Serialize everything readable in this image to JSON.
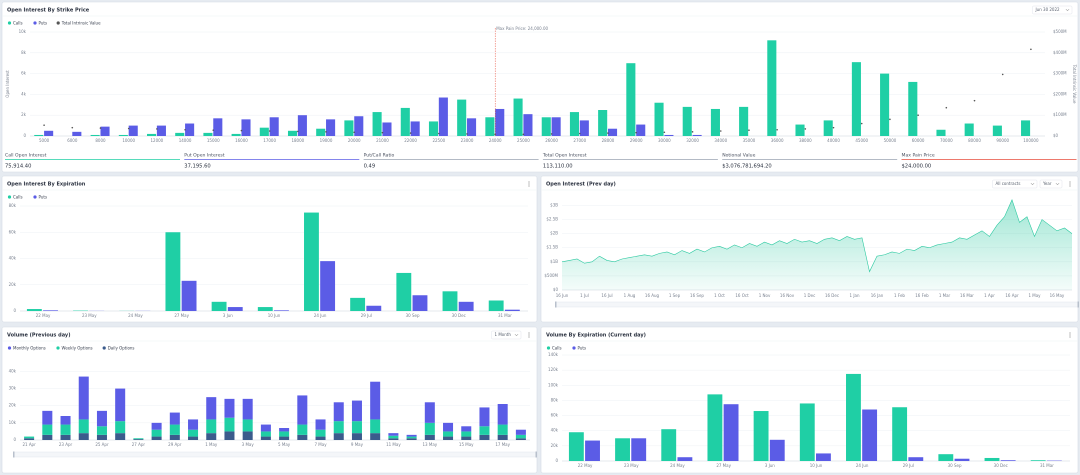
{
  "chart_data": [
    {
      "type": "bar",
      "title": "Open Interest By Strike Price",
      "dropdowns": [
        "Jun 30 2022"
      ],
      "ylabel": "Open Interest",
      "y2label": "Total Intrinsic Value",
      "y2color": "#e74c3c",
      "grid": true,
      "categories": [
        "5000",
        "6000",
        "8000",
        "10000",
        "12000",
        "14000",
        "15000",
        "16000",
        "17000",
        "18000",
        "19000",
        "20000",
        "21000",
        "22000",
        "22500",
        "23000",
        "24000",
        "25000",
        "26000",
        "27000",
        "28000",
        "29000",
        "30000",
        "32000",
        "34000",
        "35000",
        "36000",
        "38000",
        "40000",
        "45000",
        "50000",
        "60000",
        "70000",
        "80000",
        "90000",
        "100000"
      ],
      "series": [
        {
          "name": "Calls",
          "color": "#1fcfa5",
          "values": [
            100,
            0,
            100,
            100,
            200,
            300,
            300,
            200,
            800,
            500,
            700,
            1500,
            2300,
            2700,
            1400,
            3500,
            1800,
            3600,
            1800,
            2300,
            2500,
            7000,
            3200,
            2800,
            2600,
            2800,
            9200,
            1100,
            1500,
            7100,
            6000,
            5200,
            600,
            1200,
            1000,
            1500
          ]
        },
        {
          "name": "Puts",
          "color": "#5b5ce6",
          "values": [
            500,
            400,
            900,
            1000,
            1000,
            1200,
            1700,
            1600,
            1800,
            2000,
            1600,
            1900,
            1300,
            1400,
            3700,
            1700,
            2600,
            2100,
            1800,
            1500,
            700,
            1100,
            100,
            100,
            0,
            0,
            0,
            0,
            0,
            0,
            0,
            0,
            0,
            0,
            0,
            0
          ]
        },
        {
          "name": "Total Intrinsic Value",
          "color": "#555555",
          "type": "scatter",
          "axis": "y2",
          "values": [
            52000000.0,
            40000000.0,
            38000000.0,
            36000000.0,
            34000000.0,
            30000000.0,
            28000000.0,
            26000000.0,
            24000000.0,
            22000000.0,
            20000000.0,
            18000000.0,
            16000000.0,
            14000000.0,
            12000000.0,
            10000000.0,
            8000000.0,
            8000000.0,
            10000000.0,
            12000000.0,
            14000000.0,
            16000000.0,
            18000000.0,
            20000000.0,
            24000000.0,
            28000000.0,
            30000000.0,
            34000000.0,
            40000000.0,
            60000000.0,
            80000000.0,
            100000000.0,
            136000000.0,
            170000000.0,
            296000000.0,
            417000000.0
          ]
        }
      ],
      "ylim": [
        0,
        10000
      ],
      "yticks": [
        0,
        {
          "value": 2000,
          "label": "2k"
        },
        {
          "value": 4000,
          "label": "4k"
        },
        {
          "value": 6000,
          "label": "6k"
        },
        {
          "value": 8000,
          "label": "8k"
        },
        {
          "value": 10000,
          "label": "10k"
        }
      ],
      "y2lim": [
        0,
        500000000.0
      ],
      "y2ticks": [
        {
          "value": 0,
          "label": "$0"
        },
        {
          "value": 100000000.0,
          "label": "$100M"
        },
        {
          "value": 200000000.0,
          "label": "$200M"
        },
        {
          "value": 300000000.0,
          "label": "$300M"
        },
        {
          "value": 400000000.0,
          "label": "$400M"
        },
        {
          "value": 500000000.0,
          "label": "$500M"
        }
      ],
      "annotations": [
        {
          "text": "Max Pain Price: 24,000.00",
          "x": "24000",
          "color": "#e74c3c"
        }
      ],
      "stats": [
        {
          "label": "Call Open Interest",
          "value": "75,914.40",
          "color": "#1fcfa5"
        },
        {
          "label": "Put Open Interest",
          "value": "37,195.60",
          "color": "#5b5ce6"
        },
        {
          "label": "Put/Call Ratio",
          "value": "0.49",
          "color": "#9aa3b2"
        },
        {
          "label": "Total Open Interest",
          "value": "113,110.00",
          "color": "#9aa3b2"
        },
        {
          "label": "Notional Value",
          "value": "$3,076,781,694.20",
          "color": "#9aa3b2"
        },
        {
          "label": "Max Pain Price",
          "value": "$24,000.00",
          "color": "#e74c3c"
        }
      ]
    },
    {
      "type": "bar",
      "title": "Open Interest By Expiration",
      "grid": true,
      "categories": [
        "22 May",
        "23 May",
        "24 May",
        "27 May",
        "3 Jun",
        "10 Jun",
        "24 Jun",
        "29 Jul",
        "30 Sep",
        "30 Dec",
        "31 Mar"
      ],
      "series": [
        {
          "name": "Calls",
          "color": "#1fcfa5",
          "values": [
            1500,
            300,
            100,
            60000,
            7000,
            3000,
            75000,
            10000,
            29000,
            15000,
            8000
          ]
        },
        {
          "name": "Puts",
          "color": "#5b5ce6",
          "values": [
            500,
            100,
            100,
            23000,
            3000,
            500,
            38000,
            4000,
            12000,
            7000,
            1000
          ]
        }
      ],
      "ylim": [
        0,
        80000
      ],
      "yticks": [
        0,
        {
          "value": 20000,
          "label": "20k"
        },
        {
          "value": 40000,
          "label": "40k"
        },
        {
          "value": 60000,
          "label": "60k"
        },
        {
          "value": 80000,
          "label": "80k"
        }
      ]
    },
    {
      "type": "area",
      "title": "Open Interest (Prev day)",
      "dropdowns": [
        "All contracts",
        "Year"
      ],
      "grid": true,
      "color": "#2bc9a0",
      "categories": [
        "16 Jun",
        null,
        null,
        "1 Jul",
        null,
        null,
        "16 Jul",
        null,
        null,
        "1 Aug",
        null,
        null,
        "16 Aug",
        null,
        null,
        "1 Sep",
        null,
        null,
        "16 Sep",
        null,
        null,
        "1 Oct",
        null,
        null,
        "16 Oct",
        null,
        null,
        "1 Nov",
        null,
        null,
        "16 Nov",
        null,
        null,
        "1 Dec",
        null,
        null,
        "16 Dec",
        null,
        null,
        "1 Jan",
        null,
        null,
        "16 Jan",
        null,
        null,
        "1 Feb",
        null,
        null,
        "16 Feb",
        null,
        null,
        "1 Mar",
        null,
        null,
        "16 Mar",
        null,
        null,
        "1 Apr",
        null,
        null,
        "16 Apr",
        null,
        null,
        "1 May",
        null,
        null,
        "16 May",
        null,
        null
      ],
      "values": [
        1000000000.0,
        1050000000.0,
        1100000000.0,
        950000000.0,
        1000000000.0,
        1200000000.0,
        1050000000.0,
        1000000000.0,
        1100000000.0,
        1150000000.0,
        1200000000.0,
        1250000000.0,
        1200000000.0,
        1300000000.0,
        1350000000.0,
        1250000000.0,
        1400000000.0,
        1300000000.0,
        1450000000.0,
        1350000000.0,
        1500000000.0,
        1550000000.0,
        1450000000.0,
        1600000000.0,
        1500000000.0,
        1650000000.0,
        1550000000.0,
        1700000000.0,
        1600000000.0,
        1750000000.0,
        1650000000.0,
        1800000000.0,
        1700000000.0,
        1750000000.0,
        1650000000.0,
        1800000000.0,
        1850000000.0,
        1750000000.0,
        1900000000.0,
        1800000000.0,
        1850000000.0,
        650000000.0,
        1200000000.0,
        1250000000.0,
        1350000000.0,
        1300000000.0,
        1450000000.0,
        1400000000.0,
        1550000000.0,
        1500000000.0,
        1600000000.0,
        1650000000.0,
        1700000000.0,
        1850000000.0,
        1800000000.0,
        1950000000.0,
        2100000000.0,
        1900000000.0,
        2300000000.0,
        2600000000.0,
        3200000000.0,
        2400000000.0,
        2600000000.0,
        1900000000.0,
        2500000000.0,
        2300000000.0,
        2100000000.0,
        2200000000.0,
        2000000000.0
      ],
      "ylim": [
        0,
        3300000000.0
      ],
      "yticks": [
        {
          "value": 0,
          "label": "$0"
        },
        {
          "value": 500000000.0,
          "label": "$500M"
        },
        {
          "value": 1000000000.0,
          "label": "$1B"
        },
        {
          "value": 1500000000.0,
          "label": "$1.5B"
        },
        {
          "value": 2000000000.0,
          "label": "$2B"
        },
        {
          "value": 2500000000.0,
          "label": "$2.5B"
        },
        {
          "value": 3000000000.0,
          "label": "$3B"
        }
      ]
    },
    {
      "type": "stacked_bar",
      "title": "Volume (Previous day)",
      "dropdowns": [
        "1 Month"
      ],
      "grid": true,
      "categories": [
        "21 Apr",
        null,
        "23 Apr",
        null,
        "25 Apr",
        null,
        "27 Apr",
        null,
        "29 Apr",
        null,
        "1 May",
        null,
        "3 May",
        null,
        "5 May",
        null,
        "7 May",
        null,
        "9 May",
        null,
        "11 May",
        null,
        "13 May",
        null,
        "15 May",
        null,
        "17 May",
        null
      ],
      "series": [
        {
          "name": "Monthly Options",
          "color": "#5b5ce6",
          "values": [
            0,
            8000,
            5000,
            25000,
            9000,
            19000,
            0,
            4000,
            7000,
            6000,
            13000,
            11000,
            12000,
            4000,
            2000,
            17000,
            6000,
            11000,
            12000,
            22000,
            1500,
            1000,
            12000,
            5000,
            3000,
            11000,
            12000,
            3000
          ]
        },
        {
          "name": "Weekly Options",
          "color": "#1fcfa5",
          "values": [
            1000,
            6000,
            6000,
            8000,
            5000,
            7000,
            500,
            4000,
            6000,
            4000,
            8000,
            8000,
            7000,
            3000,
            3000,
            6000,
            4000,
            7000,
            7000,
            8000,
            1500,
            1000,
            7000,
            3000,
            3000,
            5000,
            6000,
            2000
          ]
        },
        {
          "name": "Daily Options",
          "color": "#3b5b8c",
          "values": [
            1000,
            3000,
            3000,
            4000,
            3000,
            4000,
            500,
            2000,
            3000,
            2000,
            4000,
            5000,
            5000,
            2000,
            2000,
            3000,
            2000,
            4000,
            4000,
            4000,
            1000,
            1000,
            3000,
            2000,
            2000,
            3000,
            3000,
            1000
          ]
        }
      ],
      "ylim": [
        0,
        42000
      ],
      "yticks": [
        0,
        {
          "value": 10000,
          "label": "10k"
        },
        {
          "value": 20000,
          "label": "20k"
        },
        {
          "value": 30000,
          "label": "30k"
        },
        {
          "value": 40000,
          "label": "40k"
        }
      ]
    },
    {
      "type": "bar",
      "title": "Volume By Expiration (Current day)",
      "grid": true,
      "categories": [
        "22 May",
        "23 May",
        "24 May",
        "27 May",
        "3 Jun",
        "10 Jun",
        "24 Jun",
        "29 Jul",
        "30 Sep",
        "30 Dec",
        "31 Mar"
      ],
      "series": [
        {
          "name": "Calls",
          "color": "#1fcfa5",
          "values": [
            38000,
            30000,
            42000,
            88000,
            66000,
            76000,
            115000,
            71000,
            9000,
            4000,
            1000
          ]
        },
        {
          "name": "Puts",
          "color": "#5b5ce6",
          "values": [
            27000,
            30000,
            5000,
            75000,
            28000,
            10000,
            68000,
            5000,
            3000,
            1000,
            500
          ]
        }
      ],
      "ylim": [
        0,
        140000
      ],
      "yticks": [
        0,
        {
          "value": 20000,
          "label": "20k"
        },
        {
          "value": 40000,
          "label": "40k"
        },
        {
          "value": 60000,
          "label": "60k"
        },
        {
          "value": 80000,
          "label": "80k"
        },
        {
          "value": 100000,
          "label": "100k"
        },
        {
          "value": 120000,
          "label": "120k"
        },
        {
          "value": 140000,
          "label": "140k"
        }
      ]
    }
  ]
}
